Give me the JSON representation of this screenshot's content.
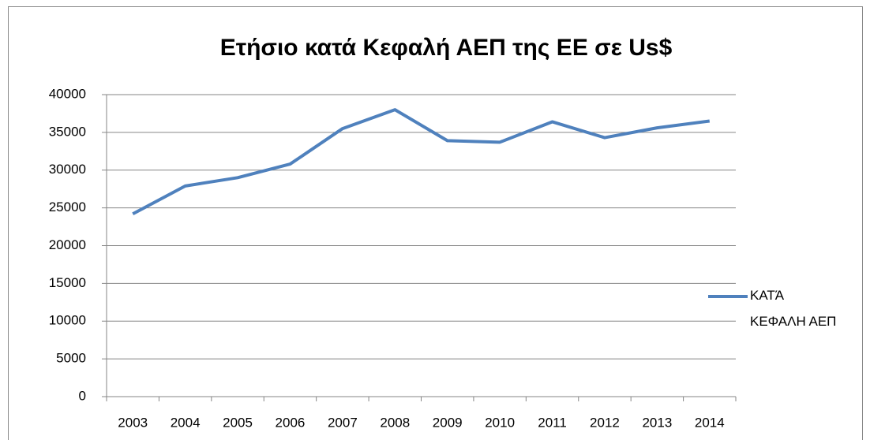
{
  "chart_data": {
    "type": "line",
    "title": "Ετήσιο κατά  Κεφαλή ΑΕΠ της ΕΕ σε Us$",
    "categories": [
      "2003",
      "2004",
      "2005",
      "2006",
      "2007",
      "2008",
      "2009",
      "2010",
      "2011",
      "2012",
      "2013",
      "2014"
    ],
    "series": [
      {
        "name": "ΚΑΤΆ ΚΕΦΑΛΗ ΑΕΠ",
        "color": "#4f81bd",
        "values": [
          24200,
          27900,
          29000,
          30800,
          35500,
          38000,
          33900,
          33700,
          36400,
          34300,
          35600,
          36500
        ]
      }
    ],
    "ylim": [
      0,
      40000
    ],
    "yticks": [
      0,
      5000,
      10000,
      15000,
      20000,
      25000,
      30000,
      35000,
      40000
    ],
    "grid": true,
    "legend": "right"
  }
}
